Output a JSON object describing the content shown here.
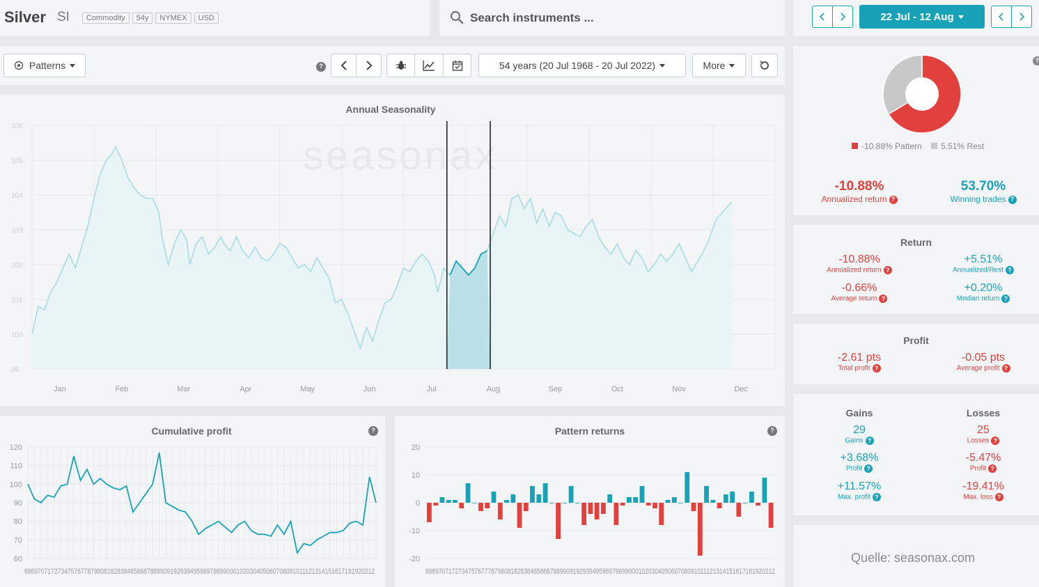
{
  "header": {
    "name": "Silver",
    "ticker": "SI",
    "tags": [
      "Commodity",
      "54y",
      "NYMEX",
      "USD"
    ],
    "search_placeholder": "Search instruments ...",
    "date_range": "22 Jul - 12 Aug"
  },
  "toolbar": {
    "patterns_label": "Patterns",
    "period_label": "54 years (20 Jul 1968 - 20 Jul 2022)",
    "more_label": "More"
  },
  "annual": {
    "title": "Annual Seasonality",
    "watermark": "seasonax",
    "y_ticks": [
      "106",
      "105",
      "104",
      "103",
      "102",
      "101",
      "100",
      "99"
    ],
    "months": [
      "Jan",
      "Feb",
      "Mar",
      "Apr",
      "May",
      "Jun",
      "Jul",
      "Aug",
      "Sep",
      "Oct",
      "Nov",
      "Dec"
    ]
  },
  "cumulative": {
    "title": "Cumulative profit",
    "y_ticks": [
      "120",
      "110",
      "100",
      "90",
      "80",
      "70",
      "60"
    ],
    "x_ticks": "6869707172734757677879808182838485868788990919293949596979899000102030405060708091011121314151617181920212"
  },
  "pattern_returns": {
    "title": "Pattern returns",
    "y_ticks": [
      "20",
      "10",
      "0",
      "-10",
      "-20"
    ],
    "x_ticks": "68697071727347576777879808182838485868788990919293949596979899000102030405060708091011121314151617181920212"
  },
  "summary": {
    "legend_pattern": "-10.88% Pattern",
    "legend_rest": "5.51% Rest",
    "annualized_return": "-10.88%",
    "annualized_return_label": "Annualized return",
    "winning_trades": "53.70%",
    "winning_trades_label": "Winning trades"
  },
  "return_box": {
    "title": "Return",
    "items": [
      {
        "value": "-10.88%",
        "label": "Annualized return"
      },
      {
        "value": "+5.51%",
        "label": "Annualized/Rest"
      },
      {
        "value": "-0.66%",
        "label": "Average return"
      },
      {
        "value": "+0.20%",
        "label": "Median return"
      }
    ]
  },
  "profit_box": {
    "title": "Profit",
    "items": [
      {
        "value": "-2.61 pts",
        "label": "Total profit"
      },
      {
        "value": "-0.05 pts",
        "label": "Average profit"
      }
    ]
  },
  "gains_losses": {
    "gains_title": "Gains",
    "losses_title": "Losses",
    "gains": [
      {
        "value": "29",
        "label": "Gains"
      },
      {
        "value": "+3.68%",
        "label": "Profit"
      },
      {
        "value": "+11.57%",
        "label": "Max. profit"
      }
    ],
    "losses": [
      {
        "value": "25",
        "label": "Losses"
      },
      {
        "value": "-5.47%",
        "label": "Profit"
      },
      {
        "value": "-19.41%",
        "label": "Max. loss"
      }
    ]
  },
  "source": "Quelle: seasonax.com",
  "colors": {
    "teal": "#17a2b8",
    "red": "#e2403c",
    "light_line": "#a9dbe2"
  },
  "chart_data": [
    {
      "type": "line",
      "title": "Annual Seasonality",
      "ylim": [
        99,
        106
      ],
      "x_range": [
        0,
        12
      ],
      "highlight_range": [
        6.7,
        7.4
      ],
      "points": [
        [
          0,
          100
        ],
        [
          0.1,
          100.8
        ],
        [
          0.2,
          100.7
        ],
        [
          0.3,
          101.2
        ],
        [
          0.4,
          101.5
        ],
        [
          0.5,
          101.9
        ],
        [
          0.6,
          102.3
        ],
        [
          0.7,
          101.9
        ],
        [
          0.8,
          102.5
        ],
        [
          0.9,
          103.1
        ],
        [
          1.0,
          103.9
        ],
        [
          1.1,
          104.6
        ],
        [
          1.2,
          105.0
        ],
        [
          1.3,
          105.2
        ],
        [
          1.35,
          105.4
        ],
        [
          1.45,
          105.0
        ],
        [
          1.55,
          104.5
        ],
        [
          1.65,
          104.2
        ],
        [
          1.75,
          104.0
        ],
        [
          1.85,
          103.9
        ],
        [
          1.95,
          103.9
        ],
        [
          2.05,
          103.5
        ],
        [
          2.1,
          102.8
        ],
        [
          2.2,
          102.0
        ],
        [
          2.3,
          102.6
        ],
        [
          2.4,
          103.0
        ],
        [
          2.5,
          102.7
        ],
        [
          2.55,
          102.0
        ],
        [
          2.65,
          102.6
        ],
        [
          2.75,
          102.8
        ],
        [
          2.85,
          102.3
        ],
        [
          2.95,
          102.5
        ],
        [
          3.05,
          102.8
        ],
        [
          3.1,
          102.6
        ],
        [
          3.2,
          102.4
        ],
        [
          3.3,
          102.8
        ],
        [
          3.4,
          102.4
        ],
        [
          3.5,
          102.2
        ],
        [
          3.6,
          102.5
        ],
        [
          3.7,
          102.2
        ],
        [
          3.8,
          102.1
        ],
        [
          3.9,
          102.3
        ],
        [
          4.0,
          102.6
        ],
        [
          4.1,
          102.5
        ],
        [
          4.2,
          102.2
        ],
        [
          4.3,
          101.9
        ],
        [
          4.4,
          102.0
        ],
        [
          4.5,
          101.8
        ],
        [
          4.6,
          102.2
        ],
        [
          4.7,
          101.9
        ],
        [
          4.8,
          101.6
        ],
        [
          4.9,
          100.9
        ],
        [
          5.0,
          101.0
        ],
        [
          5.1,
          100.6
        ],
        [
          5.2,
          100.1
        ],
        [
          5.3,
          99.6
        ],
        [
          5.4,
          100.2
        ],
        [
          5.5,
          99.8
        ],
        [
          5.6,
          100.4
        ],
        [
          5.7,
          100.9
        ],
        [
          5.8,
          101.0
        ],
        [
          5.9,
          101.4
        ],
        [
          6.0,
          101.9
        ],
        [
          6.1,
          101.8
        ],
        [
          6.2,
          102.1
        ],
        [
          6.3,
          102.3
        ],
        [
          6.4,
          102.1
        ],
        [
          6.5,
          101.7
        ],
        [
          6.55,
          101.2
        ],
        [
          6.65,
          101.9
        ],
        [
          6.75,
          101.7
        ],
        [
          6.85,
          102.1
        ],
        [
          6.95,
          101.9
        ],
        [
          7.05,
          101.7
        ],
        [
          7.15,
          101.9
        ],
        [
          7.25,
          102.3
        ],
        [
          7.35,
          102.4
        ],
        [
          7.45,
          102.9
        ],
        [
          7.55,
          103.4
        ],
        [
          7.65,
          103.1
        ],
        [
          7.75,
          103.9
        ],
        [
          7.85,
          104.0
        ],
        [
          7.95,
          103.6
        ],
        [
          8.05,
          103.9
        ],
        [
          8.15,
          103.2
        ],
        [
          8.25,
          103.6
        ],
        [
          8.35,
          103.1
        ],
        [
          8.45,
          103.5
        ],
        [
          8.55,
          103.4
        ],
        [
          8.65,
          103.0
        ],
        [
          8.75,
          102.9
        ],
        [
          8.85,
          102.8
        ],
        [
          8.95,
          103.1
        ],
        [
          9.05,
          103.3
        ],
        [
          9.15,
          102.8
        ],
        [
          9.25,
          102.5
        ],
        [
          9.35,
          102.3
        ],
        [
          9.45,
          102.6
        ],
        [
          9.55,
          102.2
        ],
        [
          9.65,
          102.0
        ],
        [
          9.75,
          102.4
        ],
        [
          9.85,
          102.2
        ],
        [
          9.95,
          101.8
        ],
        [
          10.05,
          102.0
        ],
        [
          10.15,
          102.3
        ],
        [
          10.25,
          102.1
        ],
        [
          10.35,
          102.3
        ],
        [
          10.45,
          102.6
        ],
        [
          10.55,
          102.2
        ],
        [
          10.65,
          101.8
        ],
        [
          10.75,
          102.1
        ],
        [
          10.85,
          102.4
        ],
        [
          10.95,
          102.8
        ],
        [
          11.05,
          103.3
        ],
        [
          11.15,
          103.5
        ],
        [
          11.25,
          103.7
        ],
        [
          11.3,
          103.8
        ]
      ]
    },
    {
      "type": "line",
      "title": "Cumulative profit",
      "x": [
        1968,
        1969,
        1970,
        1971,
        1972,
        1973,
        1974,
        1975,
        1976,
        1977,
        1978,
        1979,
        1980,
        1981,
        1982,
        1983,
        1984,
        1985,
        1986,
        1987,
        1988,
        1989,
        1990,
        1991,
        1992,
        1993,
        1994,
        1995,
        1996,
        1997,
        1998,
        1999,
        2000,
        2001,
        2002,
        2003,
        2004,
        2005,
        2006,
        2007,
        2008,
        2009,
        2010,
        2011,
        2012,
        2013,
        2014,
        2015,
        2016,
        2017,
        2018,
        2019,
        2020,
        2021
      ],
      "values": [
        100,
        92,
        90,
        94,
        93,
        99,
        100,
        115,
        102,
        108,
        100,
        103,
        100,
        98,
        97,
        99,
        85,
        90,
        95,
        100,
        117,
        90,
        88,
        86,
        85,
        80,
        73,
        76,
        78,
        80,
        77,
        74,
        78,
        80,
        75,
        73,
        73,
        72,
        78,
        73,
        80,
        63,
        68,
        67,
        70,
        72,
        74,
        74,
        75,
        79,
        80,
        78,
        104,
        90
      ],
      "ylim": [
        60,
        120
      ]
    },
    {
      "type": "bar",
      "title": "Pattern returns",
      "x": [
        1968,
        1969,
        1970,
        1971,
        1972,
        1973,
        1974,
        1975,
        1976,
        1977,
        1978,
        1979,
        1980,
        1981,
        1982,
        1983,
        1984,
        1985,
        1986,
        1987,
        1988,
        1989,
        1990,
        1991,
        1992,
        1993,
        1994,
        1995,
        1996,
        1997,
        1998,
        1999,
        2000,
        2001,
        2002,
        2003,
        2004,
        2005,
        2006,
        2007,
        2008,
        2009,
        2010,
        2011,
        2012,
        2013,
        2014,
        2015,
        2016,
        2017,
        2018,
        2019,
        2020,
        2021
      ],
      "values": [
        -7,
        -1,
        2,
        1,
        1,
        -2,
        7,
        0,
        -3,
        -2,
        4,
        -6,
        1,
        3,
        -9,
        -3,
        6,
        3,
        7,
        0,
        -13,
        0,
        6,
        0,
        -8,
        -4,
        -6,
        -4,
        3,
        -8,
        -1,
        2,
        2,
        6,
        -1,
        -2,
        -8,
        1,
        2,
        0,
        11,
        -3,
        -19,
        6,
        1,
        -2,
        3,
        4,
        -5,
        0,
        4,
        -1,
        9,
        -9
      ],
      "ylim": [
        -20,
        20
      ]
    },
    {
      "type": "pie",
      "values": [
        -10.88,
        5.51
      ],
      "labels": [
        "-10.88% Pattern",
        "5.51% Rest"
      ]
    }
  ]
}
